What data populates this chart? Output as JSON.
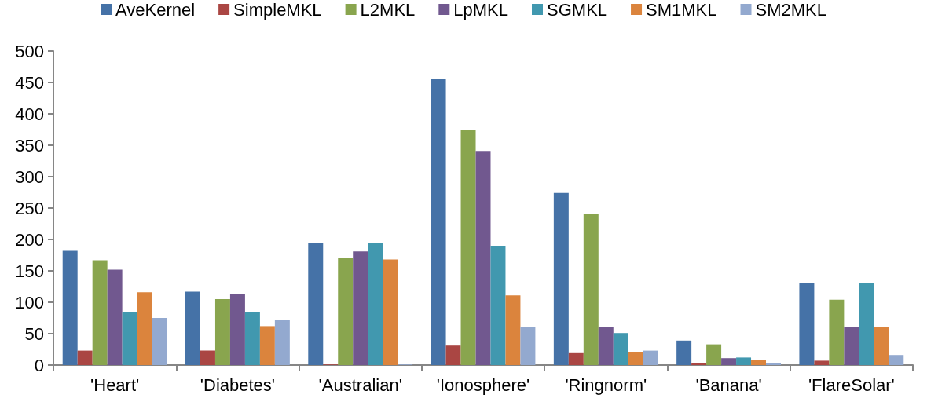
{
  "chart_data": {
    "type": "bar",
    "categories": [
      "'Heart'",
      "'Diabetes'",
      "'Australian'",
      "'Ionosphere'",
      "'Ringnorm'",
      "'Banana'",
      "'FlareSolar'"
    ],
    "series": [
      {
        "name": "AveKernel",
        "color": "#4572a7",
        "values": [
          182,
          117,
          195,
          455,
          274,
          39,
          130
        ]
      },
      {
        "name": "SimpleMKL",
        "color": "#aa4643",
        "values": [
          23,
          23,
          1,
          31,
          19,
          3,
          7
        ]
      },
      {
        "name": "L2MKL",
        "color": "#89a54e",
        "values": [
          167,
          105,
          170,
          374,
          240,
          33,
          104
        ]
      },
      {
        "name": "LpMKL",
        "color": "#71588f",
        "values": [
          152,
          113,
          181,
          341,
          61,
          11,
          61
        ]
      },
      {
        "name": "SGMKL",
        "color": "#4198af",
        "values": [
          85,
          84,
          195,
          190,
          51,
          12,
          130
        ]
      },
      {
        "name": "SM1MKL",
        "color": "#db843d",
        "values": [
          116,
          62,
          168,
          111,
          20,
          8,
          60
        ]
      },
      {
        "name": "SM2MKL",
        "color": "#93a9cf",
        "values": [
          75,
          72,
          1,
          61,
          23,
          3,
          16
        ]
      }
    ],
    "ylim": [
      0,
      500
    ],
    "yticks": [
      0,
      50,
      100,
      150,
      200,
      250,
      300,
      350,
      400,
      450,
      500
    ],
    "grid": false,
    "legend": "top"
  }
}
